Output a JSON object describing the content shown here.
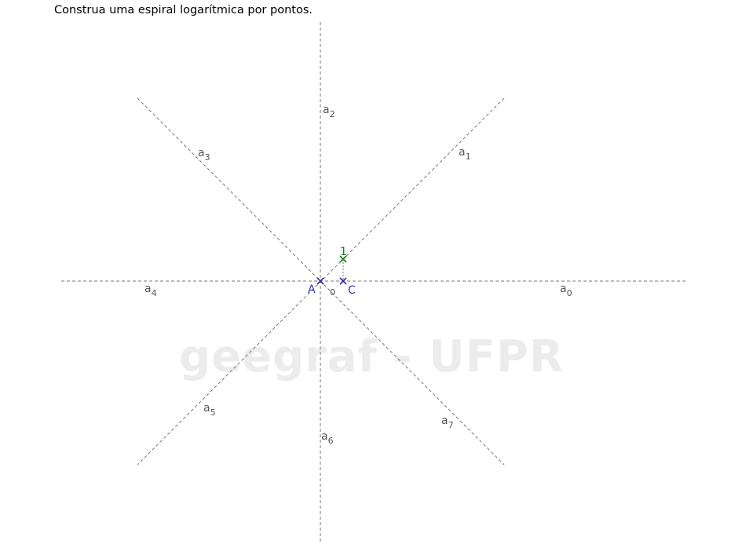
{
  "title": "Construa uma espiral logarítmica por pontos.",
  "watermark": "geegraf - UFPR",
  "colors": {
    "axis": "#777777",
    "axis_label": "#555555",
    "point_blue": "#3333aa",
    "point_green": "#1a7a1a",
    "watermark": "#ececec"
  },
  "rays": [
    {
      "name": "a",
      "sub": "0"
    },
    {
      "name": "a",
      "sub": "1"
    },
    {
      "name": "a",
      "sub": "2"
    },
    {
      "name": "a",
      "sub": "3"
    },
    {
      "name": "a",
      "sub": "4"
    },
    {
      "name": "a",
      "sub": "5"
    },
    {
      "name": "a",
      "sub": "6"
    },
    {
      "name": "a",
      "sub": "7"
    }
  ],
  "points": {
    "A": {
      "label": "A"
    },
    "C": {
      "label": "C"
    },
    "one": {
      "label": "1"
    },
    "zero": {
      "label": "0"
    }
  }
}
